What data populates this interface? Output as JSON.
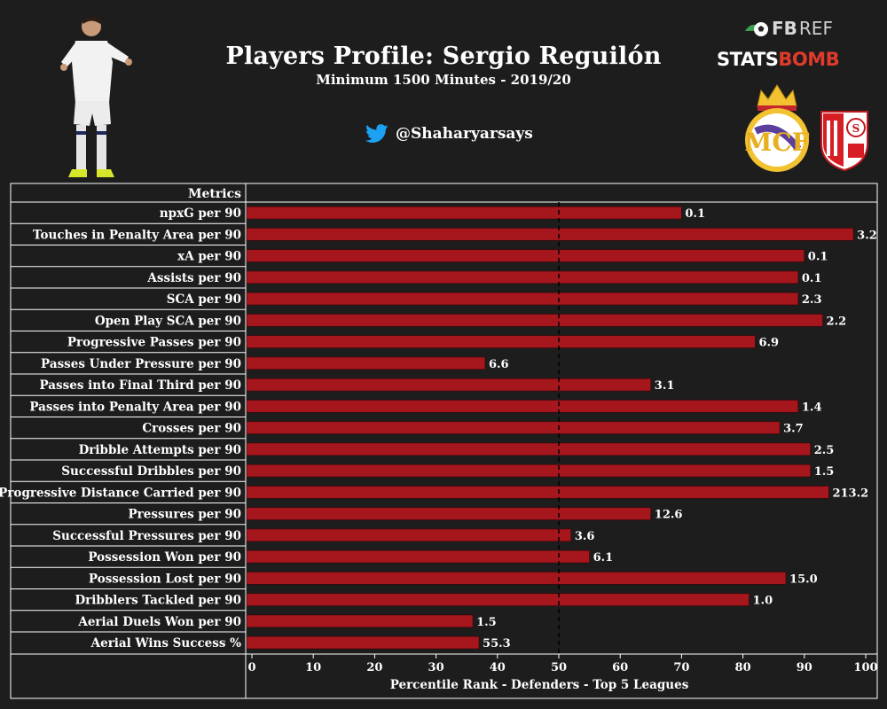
{
  "header": {
    "title": "Players Profile: Sergio Reguilón",
    "subtitle": "Minimum 1500 Minutes - 2019/20",
    "twitter_handle": "@Shaharyarsays",
    "fbref_logo": {
      "fb": "FB",
      "ref": "REF"
    },
    "statsbomb_logo": {
      "stats": "STATS",
      "bomb": "BOMB"
    }
  },
  "colors": {
    "background": "#1d1d1d",
    "bar": "#a5161d",
    "twitter": "#1da1f2",
    "gridline": "#000000",
    "border": "#ffffff"
  },
  "chart_data": {
    "type": "bar",
    "orientation": "horizontal",
    "column_header": "Metrics",
    "xlabel": "Percentile Rank - Defenders - Top 5 Leagues",
    "xlim": [
      0,
      100
    ],
    "xticks": [
      0,
      10,
      20,
      30,
      40,
      50,
      60,
      70,
      80,
      90,
      100
    ],
    "reference_line": 50,
    "categories": [
      "npxG per 90",
      "Touches in Penalty Area per 90",
      "xA per 90",
      "Assists per 90",
      "SCA per 90",
      "Open Play SCA per 90",
      "Progressive Passes per 90",
      "Passes Under Pressure per 90",
      "Passes into Final Third per 90",
      "Passes into Penalty Area per 90",
      "Crosses per 90",
      "Dribble Attempts per 90",
      "Successful Dribbles per 90",
      "Progressive Distance Carried per 90",
      "Pressures per 90",
      "Successful Pressures per 90",
      "Possession Won per 90",
      "Possession Lost per 90",
      "Dribblers Tackled per 90",
      "Aerial Duels Won per 90",
      "Aerial Wins Success %"
    ],
    "percentiles": [
      70,
      98,
      90,
      89,
      89,
      93,
      82,
      38,
      65,
      89,
      86,
      91,
      91,
      94,
      65,
      52,
      55,
      87,
      81,
      36,
      37
    ],
    "value_labels": [
      "0.1",
      "3.2",
      "0.1",
      "0.1",
      "2.3",
      "2.2",
      "6.9",
      "6.6",
      "3.1",
      "1.4",
      "3.7",
      "2.5",
      "1.5",
      "213.2",
      "12.6",
      "3.6",
      "6.1",
      "15.0",
      "1.0",
      "1.5",
      "55.3"
    ]
  }
}
